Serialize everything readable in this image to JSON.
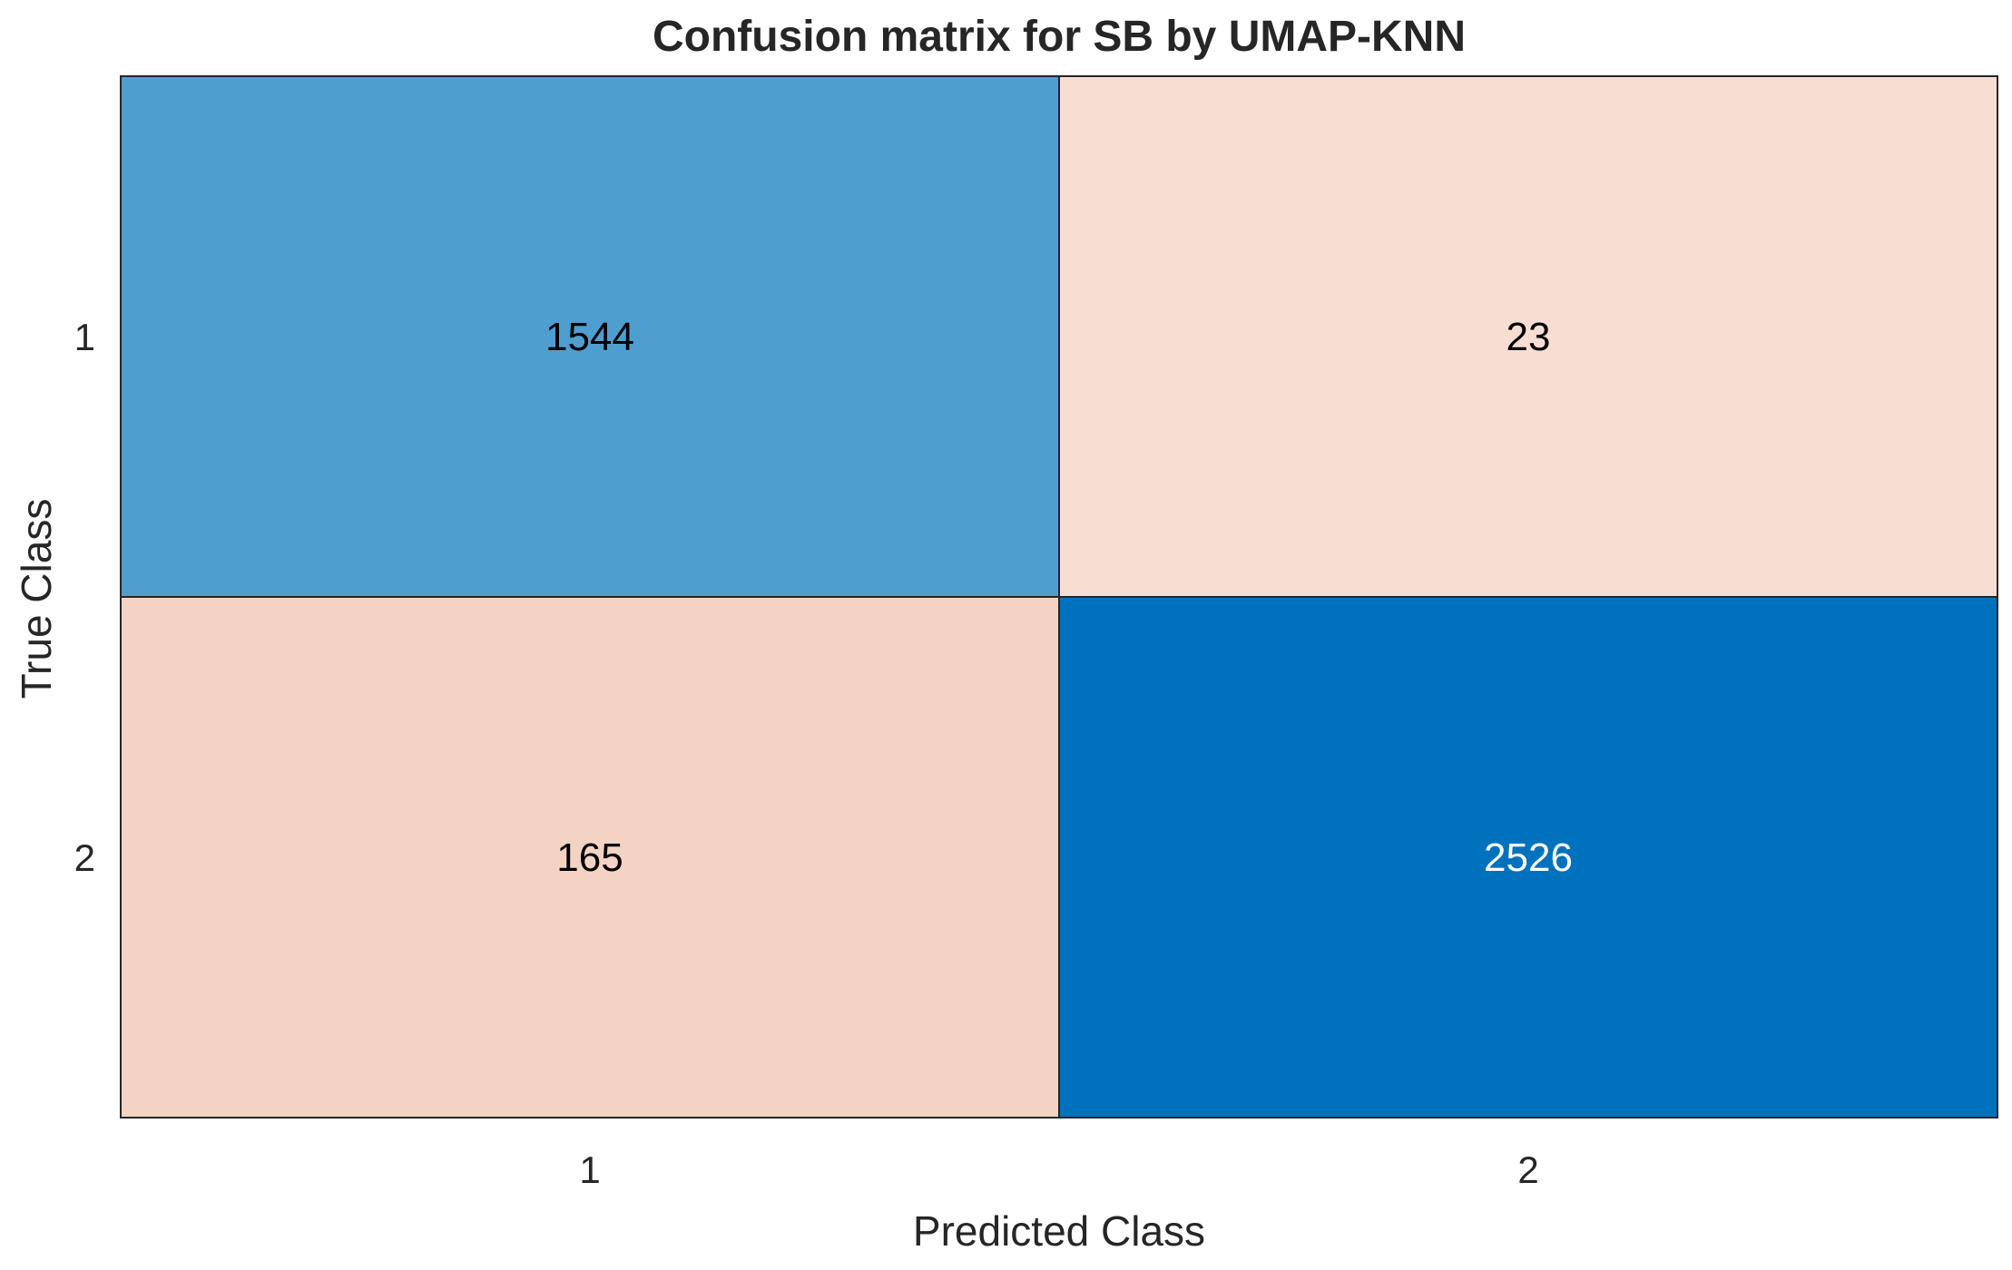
{
  "chart_data": {
    "type": "heatmap",
    "title": "Confusion matrix for SB by UMAP-KNN",
    "xlabel": "Predicted Class",
    "ylabel": "True Class",
    "x_categories": [
      "1",
      "2"
    ],
    "y_categories": [
      "1",
      "2"
    ],
    "values": [
      [
        1544,
        23
      ],
      [
        165,
        2526
      ]
    ],
    "colors": {
      "diag_low": "#4f9ed0",
      "diag_high": "#0072bd",
      "offdiag_low": "#f7ddd2",
      "offdiag_high": "#f4d3c5",
      "text_dark": "#000000",
      "text_light": "#ffffff"
    },
    "grid": true,
    "legend": "none"
  }
}
